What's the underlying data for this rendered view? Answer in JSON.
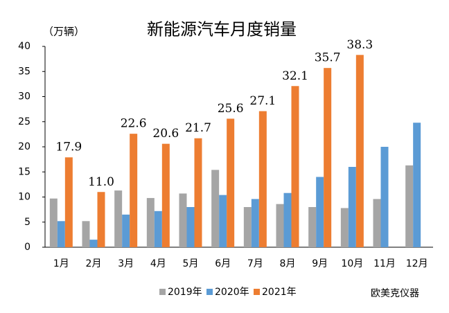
{
  "chart_data": {
    "type": "bar",
    "title": "新能源汽车月度销量",
    "y_label": "（万辆）",
    "categories": [
      "1月",
      "2月",
      "3月",
      "4月",
      "5月",
      "6月",
      "7月",
      "8月",
      "9月",
      "10月",
      "11月",
      "12月"
    ],
    "series": [
      {
        "name": "2019年",
        "color": "#a5a5a5",
        "values": [
          9.7,
          5.2,
          11.3,
          9.8,
          10.7,
          15.4,
          8.0,
          8.6,
          8.0,
          7.8,
          9.6,
          16.3
        ]
      },
      {
        "name": "2020年",
        "color": "#5b9bd5",
        "values": [
          5.2,
          1.5,
          6.5,
          7.2,
          8.0,
          10.4,
          9.6,
          10.8,
          14.0,
          16.0,
          20.0,
          24.8
        ]
      },
      {
        "name": "2021年",
        "color": "#ed7d31",
        "values": [
          17.9,
          11.0,
          22.6,
          20.6,
          21.7,
          25.6,
          27.1,
          32.1,
          35.7,
          38.3,
          null,
          null
        ],
        "value_labels": [
          "17.9",
          "11.0",
          "22.6",
          "20.6",
          "21.7",
          "25.6",
          "27.1",
          "32.1",
          "35.7",
          "38.3",
          null,
          null
        ]
      }
    ],
    "ylim": [
      0,
      40
    ],
    "yticks": [
      0,
      5,
      10,
      15,
      20,
      25,
      30,
      35,
      40
    ],
    "grid": false,
    "legend": "bottom",
    "annotation": "欧美克仪器"
  }
}
